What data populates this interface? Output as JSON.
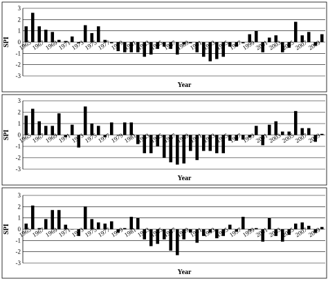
{
  "chart_data": [
    {
      "type": "bar",
      "xlabel": "Year",
      "ylabel": "SPI",
      "ylim": [
        -3,
        3
      ],
      "yticks": [
        -3,
        -2,
        -1,
        0,
        1,
        2,
        3
      ],
      "grid": true,
      "x": [
        1965,
        1966,
        1967,
        1968,
        1969,
        1970,
        1971,
        1972,
        1973,
        1974,
        1975,
        1976,
        1977,
        1978,
        1979,
        1980,
        1981,
        1982,
        1983,
        1984,
        1985,
        1986,
        1987,
        1988,
        1989,
        1990,
        1991,
        1992,
        1993,
        1994,
        1995,
        1996,
        1997,
        1998,
        1999,
        2000,
        2001,
        2002,
        2003,
        2004,
        2005,
        2006,
        2007,
        2008,
        2009,
        2010
      ],
      "xtick_labels": [
        "1965",
        "1967",
        "1969",
        "1971",
        "1973",
        "1975",
        "1977",
        "1979",
        "1981",
        "1983",
        "1985",
        "1987",
        "1989",
        "1991",
        "1993",
        "1995",
        "1997",
        "1999",
        "2001",
        "2003",
        "2005",
        "2007",
        "2009"
      ],
      "values": [
        1.4,
        2.6,
        1.4,
        1.1,
        0.9,
        0.2,
        0.1,
        0.5,
        -0.1,
        1.5,
        0.8,
        1.4,
        0.2,
        -0.1,
        -0.8,
        -0.9,
        -0.9,
        -0.9,
        -1.3,
        -1.1,
        -0.6,
        -0.4,
        -0.6,
        -1.1,
        -0.2,
        -0.1,
        -0.9,
        -1.3,
        -1.7,
        -1.5,
        -1.3,
        -0.4,
        -0.4,
        -0.1,
        0.7,
        1.0,
        -0.9,
        0.4,
        0.6,
        -0.9,
        -0.5,
        1.8,
        0.6,
        0.9,
        -0.3,
        0.7
      ]
    },
    {
      "type": "bar",
      "xlabel": "Year",
      "ylabel": "SPI",
      "ylim": [
        -3,
        3
      ],
      "yticks": [
        -3,
        -2,
        -1,
        0,
        1,
        2,
        3
      ],
      "grid": true,
      "x": [
        1965,
        1966,
        1967,
        1968,
        1969,
        1970,
        1971,
        1972,
        1973,
        1974,
        1975,
        1976,
        1977,
        1978,
        1979,
        1980,
        1981,
        1982,
        1983,
        1984,
        1985,
        1986,
        1987,
        1988,
        1989,
        1990,
        1991,
        1992,
        1993,
        1994,
        1995,
        1996,
        1997,
        1998,
        1999,
        2000,
        2001,
        2002,
        2003,
        2004,
        2005,
        2006,
        2007,
        2008,
        2009,
        2010
      ],
      "xtick_labels": [
        "1965",
        "1967",
        "1969",
        "1971",
        "1973",
        "1975",
        "1977",
        "1979",
        "1981",
        "1983",
        "1985",
        "1987",
        "1989",
        "1991",
        "1993",
        "1995",
        "1997",
        "1999",
        "2001",
        "2003",
        "2005",
        "2007",
        "2009"
      ],
      "values": [
        1.7,
        2.3,
        1.2,
        0.8,
        0.8,
        1.9,
        -0.2,
        0.9,
        -1.1,
        2.5,
        1.0,
        0.8,
        -0.2,
        1.1,
        0,
        1.1,
        1.1,
        -0.8,
        -1.6,
        -1.6,
        -1.0,
        -2.0,
        -2.4,
        -2.6,
        -2.5,
        -1.4,
        -2.2,
        -1.4,
        -1.4,
        -1.6,
        -1.6,
        -0.5,
        -0.5,
        -0.4,
        -0.2,
        0.8,
        -0.9,
        0.9,
        1.2,
        0.3,
        0.3,
        2.1,
        0.6,
        0.6,
        -0.6,
        0.1
      ]
    },
    {
      "type": "bar",
      "xlabel": "Year",
      "ylabel": "SPI",
      "ylim": [
        -3,
        3
      ],
      "yticks": [
        -3,
        -2,
        -1,
        0,
        1,
        2,
        3
      ],
      "grid": true,
      "x": [
        1965,
        1966,
        1967,
        1968,
        1969,
        1970,
        1971,
        1972,
        1973,
        1974,
        1975,
        1976,
        1977,
        1978,
        1979,
        1980,
        1981,
        1982,
        1983,
        1984,
        1985,
        1986,
        1987,
        1988,
        1989,
        1990,
        1991,
        1992,
        1993,
        1994,
        1995,
        1996,
        1997,
        1998,
        1999,
        2000,
        2001,
        2002,
        2003,
        2004,
        2005,
        2006,
        2007,
        2008,
        2009,
        2010
      ],
      "xtick_labels": [
        "1965",
        "1967",
        "1969",
        "1971",
        "1973",
        "1975",
        "1977",
        "1979",
        "1981",
        "1983",
        "1985",
        "1987",
        "1989",
        "1991",
        "1993",
        "1995",
        "1997",
        "1999",
        "2001",
        "2003",
        "2005",
        "2007",
        "2009"
      ],
      "values": [
        0.5,
        2.1,
        0.1,
        0.9,
        1.7,
        1.7,
        0.4,
        0,
        -0.6,
        2.0,
        0.9,
        0.6,
        0.5,
        0.7,
        -0.3,
        0.1,
        1.1,
        1.0,
        -0.9,
        -1.5,
        -1.3,
        -0.9,
        -1.9,
        -2.3,
        -0.9,
        -0.3,
        -1.2,
        -0.6,
        -0.3,
        -0.8,
        -0.6,
        0.4,
        -0.2,
        1.1,
        -0.1,
        0.1,
        -1.1,
        1.0,
        -0.6,
        -1.1,
        -0.5,
        0.5,
        0.6,
        0.3,
        -0.3,
        0.2
      ]
    }
  ]
}
